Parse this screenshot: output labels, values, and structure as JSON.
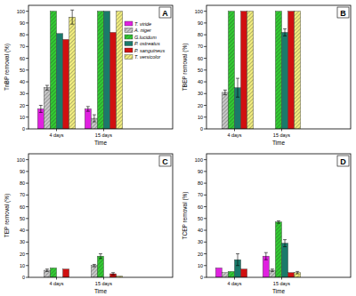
{
  "chart_data": [
    {
      "type": "bar",
      "title": "A",
      "x_label": "Time",
      "y_label": "TnBP removal (%)",
      "categories": [
        "4 days",
        "15 days"
      ],
      "ylim": [
        0,
        105
      ],
      "yticks": [
        0,
        10,
        20,
        30,
        40,
        50,
        60,
        70,
        80,
        90,
        100
      ],
      "legend": "top-right",
      "series": [
        {
          "name": "T. viride",
          "color": "#e020e0",
          "values": [
            17,
            17
          ],
          "errors": [
            3,
            2
          ]
        },
        {
          "name": "A. niger",
          "color": "#c8c8c8",
          "values": [
            35,
            9
          ],
          "errors": [
            2,
            3
          ]
        },
        {
          "name": "G.lucidum",
          "color": "#33cc33",
          "values": [
            100,
            100
          ],
          "errors": [
            0,
            0
          ]
        },
        {
          "name": "P. ostreatus",
          "color": "#1a7a6a",
          "values": [
            81,
            100
          ],
          "errors": [
            0,
            0
          ]
        },
        {
          "name": "P. sanguineus",
          "color": "#d01010",
          "values": [
            76,
            82
          ],
          "errors": [
            0,
            0
          ]
        },
        {
          "name": "T. versicolor",
          "color": "#f2ee80",
          "values": [
            95,
            100
          ],
          "errors": [
            6,
            0
          ]
        }
      ]
    },
    {
      "type": "bar",
      "title": "B",
      "x_label": "Time",
      "y_label": "TBEP removal (%)",
      "categories": [
        "4 days",
        "15 days"
      ],
      "ylim": [
        0,
        105
      ],
      "yticks": [
        0,
        10,
        20,
        30,
        40,
        50,
        60,
        70,
        80,
        90,
        100
      ],
      "series": [
        {
          "color": "#e020e0",
          "values": [
            0,
            0
          ],
          "errors": [
            0,
            0
          ]
        },
        {
          "color": "#c8c8c8",
          "values": [
            31,
            0
          ],
          "errors": [
            2,
            0
          ]
        },
        {
          "color": "#33cc33",
          "values": [
            100,
            100
          ],
          "errors": [
            0,
            0
          ]
        },
        {
          "color": "#1a7a6a",
          "values": [
            35,
            82
          ],
          "errors": [
            8,
            3
          ]
        },
        {
          "color": "#d01010",
          "values": [
            100,
            100
          ],
          "errors": [
            0,
            0
          ]
        },
        {
          "color": "#f2ee80",
          "values": [
            100,
            100
          ],
          "errors": [
            0,
            0
          ]
        }
      ]
    },
    {
      "type": "bar",
      "title": "C",
      "x_label": "Time",
      "y_label": "TEP removal (%)",
      "categories": [
        "4 days",
        "15 days"
      ],
      "ylim": [
        0,
        105
      ],
      "yticks": [
        0,
        10,
        20,
        30,
        40,
        50,
        60,
        70,
        80,
        90,
        100
      ],
      "series": [
        {
          "color": "#e020e0",
          "values": [
            0,
            0
          ],
          "errors": [
            0,
            0
          ]
        },
        {
          "color": "#c8c8c8",
          "values": [
            6,
            10
          ],
          "errors": [
            1,
            1
          ]
        },
        {
          "color": "#33cc33",
          "values": [
            8,
            18
          ],
          "errors": [
            0,
            2
          ]
        },
        {
          "color": "#1a7a6a",
          "values": [
            0,
            0
          ],
          "errors": [
            0,
            0
          ]
        },
        {
          "color": "#d01010",
          "values": [
            7,
            3
          ],
          "errors": [
            0,
            1
          ]
        },
        {
          "color": "#f2ee80",
          "values": [
            0,
            1
          ],
          "errors": [
            0,
            0
          ]
        }
      ]
    },
    {
      "type": "bar",
      "title": "D",
      "x_label": "Time",
      "y_label": "TCEP removal (%)",
      "categories": [
        "4 days",
        "15 days"
      ],
      "ylim": [
        0,
        105
      ],
      "yticks": [
        0,
        10,
        20,
        30,
        40,
        50,
        60,
        70,
        80,
        90,
        100
      ],
      "series": [
        {
          "color": "#e020e0",
          "values": [
            8,
            18
          ],
          "errors": [
            0,
            3
          ]
        },
        {
          "color": "#c8c8c8",
          "values": [
            4,
            6
          ],
          "errors": [
            0,
            1
          ]
        },
        {
          "color": "#33cc33",
          "values": [
            5,
            47
          ],
          "errors": [
            0,
            1
          ]
        },
        {
          "color": "#1a7a6a",
          "values": [
            15,
            29
          ],
          "errors": [
            5,
            3
          ]
        },
        {
          "color": "#d01010",
          "values": [
            7,
            4
          ],
          "errors": [
            0,
            0
          ]
        },
        {
          "color": "#f2ee80",
          "values": [
            0,
            4
          ],
          "errors": [
            0,
            1
          ]
        }
      ]
    }
  ]
}
